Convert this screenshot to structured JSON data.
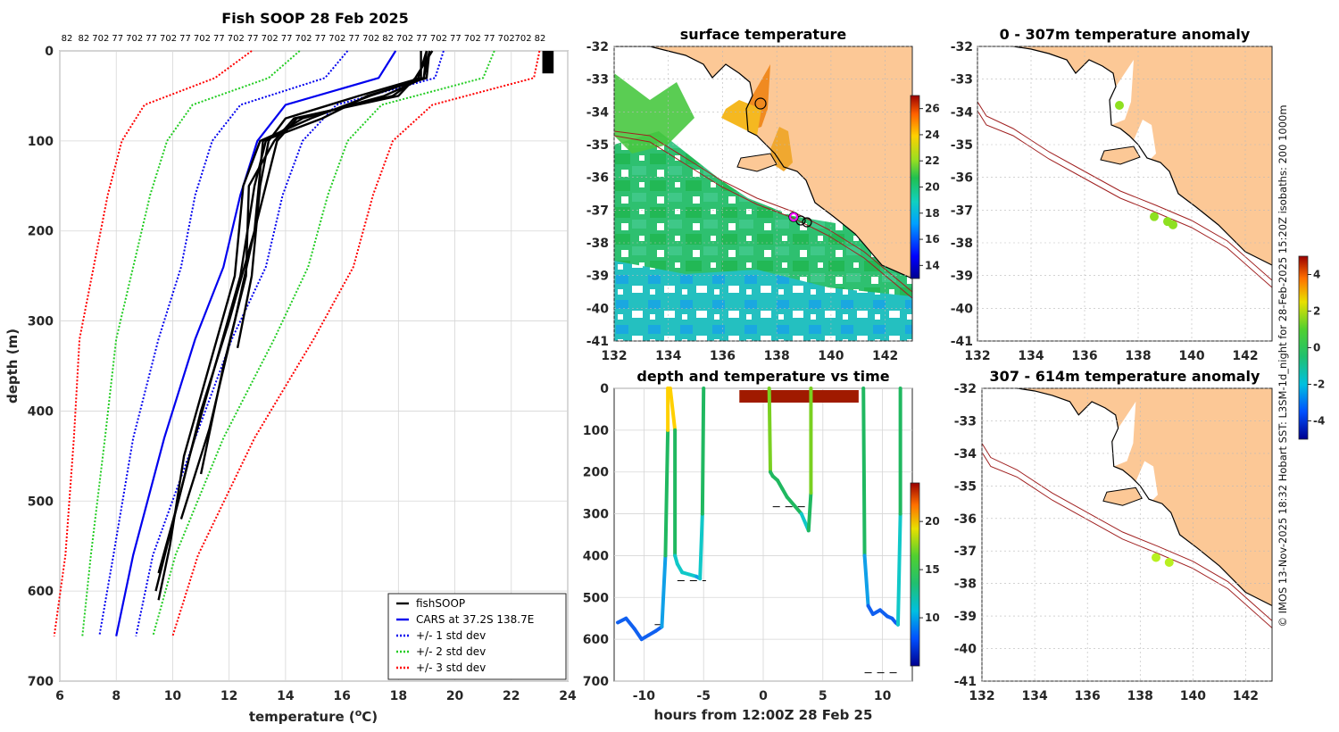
{
  "page": {
    "credit": "© IMOS 13-Nov-2025 18:32 Hobart SST: L3SM-1d_night for 28-Feb-2025 15:20Z isobaths: 200  1000m"
  },
  "chart_data": [
    {
      "type": "line",
      "title": "Fish SOOP 28 Feb 2025",
      "xlabel": "temperature (°C)",
      "ylabel": "depth (m)",
      "xlim": [
        6,
        24
      ],
      "ylim": [
        0,
        700
      ],
      "y_reversed": true,
      "xticks": [
        "6",
        "8",
        "10",
        "12",
        "14",
        "16",
        "18",
        "20",
        "22",
        "24"
      ],
      "yticks": [
        "0",
        "100",
        "200",
        "300",
        "400",
        "500",
        "600",
        "700"
      ],
      "top_ticklabels": [
        "82",
        "82",
        "702",
        "77",
        "702",
        "77",
        "702",
        "77",
        "702",
        "77",
        "702",
        "77",
        "702",
        "77",
        "702",
        "77",
        "702",
        "77",
        "702",
        "82",
        "702",
        "77",
        "702",
        "77",
        "702",
        "77",
        "702",
        "702",
        "82"
      ],
      "grid": true,
      "legend_position": "bottom-right",
      "legend": [
        {
          "label": "fishSOOP",
          "color": "#000000",
          "style": "solid"
        },
        {
          "label": "CARS at 37.2S 138.7E",
          "color": "#0000ee",
          "style": "solid"
        },
        {
          "label": "+/- 1 std dev",
          "color": "#0000ee",
          "style": "dotted"
        },
        {
          "label": "+/- 2 std dev",
          "color": "#22cc22",
          "style": "dotted"
        },
        {
          "label": "+/- 3 std dev",
          "color": "#ff0000",
          "style": "dotted"
        }
      ],
      "depths": [
        0,
        30,
        60,
        100,
        160,
        240,
        320,
        430,
        560,
        650
      ],
      "cars_mean": [
        17.9,
        17.3,
        14.0,
        13.0,
        12.4,
        11.8,
        10.8,
        9.7,
        8.6,
        8.0
      ],
      "std_bounds": [
        {
          "name": "-3",
          "color": "#ff0000",
          "values": [
            12.8,
            11.5,
            9.0,
            8.2,
            7.7,
            7.2,
            6.7,
            6.5,
            6.2,
            5.8
          ]
        },
        {
          "name": "-2",
          "color": "#22cc22",
          "values": [
            14.5,
            13.4,
            10.7,
            9.8,
            9.2,
            8.6,
            8.0,
            7.6,
            7.1,
            6.8
          ]
        },
        {
          "name": "-1",
          "color": "#0000ee",
          "values": [
            16.2,
            15.4,
            12.4,
            11.4,
            10.8,
            10.3,
            9.5,
            8.6,
            7.9,
            7.4
          ]
        },
        {
          "name": "+1",
          "color": "#0000ee",
          "values": [
            19.6,
            19.3,
            15.8,
            14.6,
            13.9,
            13.3,
            12.1,
            10.8,
            9.3,
            8.7
          ]
        },
        {
          "name": "+2",
          "color": "#22cc22",
          "values": [
            21.4,
            21.0,
            17.4,
            16.2,
            15.5,
            14.8,
            13.6,
            11.8,
            10.1,
            9.3
          ]
        },
        {
          "name": "+3",
          "color": "#ff0000",
          "values": [
            23.0,
            22.8,
            19.2,
            17.8,
            17.1,
            16.4,
            15.0,
            12.9,
            10.9,
            10.0
          ]
        }
      ],
      "fishsoop_profiles": [
        {
          "depths": [
            0,
            30,
            50,
            75,
            100,
            150,
            250,
            350,
            450,
            550,
            600
          ],
          "temps": [
            19.0,
            18.9,
            17.5,
            14.6,
            13.3,
            12.9,
            12.4,
            11.5,
            10.6,
            9.8,
            9.4
          ]
        },
        {
          "depths": [
            0,
            30,
            50,
            75,
            100,
            150,
            250,
            350,
            470
          ],
          "temps": [
            19.2,
            18.6,
            18.0,
            14.3,
            13.6,
            12.7,
            12.6,
            11.8,
            11.0
          ]
        },
        {
          "depths": [
            0,
            30,
            50,
            75,
            100,
            150,
            250,
            330
          ],
          "temps": [
            18.8,
            18.8,
            16.6,
            14.0,
            13.4,
            13.1,
            12.8,
            12.3
          ]
        },
        {
          "depths": [
            0,
            30,
            50,
            75,
            100,
            150,
            250,
            350,
            450,
            550,
            610
          ],
          "temps": [
            19.1,
            18.9,
            17.0,
            14.9,
            13.1,
            12.5,
            12.2,
            11.3,
            10.4,
            9.9,
            9.5
          ]
        },
        {
          "depths": [
            0,
            30,
            50,
            75,
            100,
            200,
            300,
            400,
            500,
            580
          ],
          "temps": [
            19.0,
            18.7,
            17.8,
            14.4,
            13.7,
            12.9,
            12.0,
            11.0,
            10.2,
            9.5
          ]
        },
        {
          "depths": [
            0,
            30,
            50,
            75,
            100,
            200,
            300,
            420,
            520
          ],
          "temps": [
            19.1,
            19.0,
            16.9,
            15.3,
            13.2,
            12.9,
            12.2,
            11.3,
            10.3
          ]
        }
      ],
      "surface_markers": {
        "temp_range": [
          23.1,
          23.5
        ],
        "depth_range": [
          0,
          25
        ]
      }
    },
    {
      "type": "heatmap",
      "title": "surface temperature",
      "xlim": [
        132,
        143
      ],
      "ylim": [
        -41,
        -32
      ],
      "xticks": [
        "132",
        "134",
        "136",
        "138",
        "140",
        "142"
      ],
      "yticks": [
        "-32",
        "-33",
        "-34",
        "-35",
        "-36",
        "-37",
        "-38",
        "-39",
        "-40",
        "-41"
      ],
      "colorbar": {
        "ticks": [
          "14",
          "16",
          "18",
          "20",
          "22",
          "24",
          "26"
        ],
        "range": [
          13,
          27
        ]
      },
      "vessel_track_points": [
        [
          138.7,
          -37.2
        ],
        [
          138.9,
          -37.25
        ],
        [
          139.1,
          -37.3
        ],
        [
          137.6,
          -33.9
        ]
      ],
      "magenta_marker": [
        138.7,
        -37.2
      ]
    },
    {
      "type": "scatter",
      "title": "depth and temperature vs time",
      "xlabel": "hours from 12:00Z 28 Feb 25",
      "xlim": [
        -12.5,
        12.5
      ],
      "ylim": [
        0,
        700
      ],
      "y_reversed": true,
      "xticks": [
        "-10",
        "-5",
        "0",
        "5",
        "10"
      ],
      "yticks": [
        "0",
        "100",
        "200",
        "300",
        "400",
        "500",
        "600",
        "700"
      ],
      "colorbar": {
        "ticks": [
          "10",
          "15",
          "20"
        ],
        "range": [
          5,
          24
        ]
      },
      "depth_series": [
        {
          "time": [
            -12.2,
            -11.5,
            -10.8,
            -10.2,
            -9.6,
            -9.0,
            -8.5,
            -8.2,
            -8.0,
            -8.0,
            -7.8,
            -7.4,
            -7.4,
            -7.2,
            -6.8,
            -6.2,
            -5.6,
            -5.3,
            -5.1,
            -5.0
          ],
          "depth": [
            560,
            550,
            575,
            600,
            590,
            580,
            570,
            400,
            100,
            0,
            0,
            100,
            400,
            420,
            440,
            445,
            450,
            455,
            300,
            0
          ]
        },
        {
          "time": [
            0.5,
            0.6,
            0.8,
            1.2,
            1.6,
            2.0,
            2.6,
            3.2,
            3.8,
            4.0,
            4.0
          ],
          "depth": [
            0,
            200,
            210,
            220,
            240,
            260,
            280,
            300,
            340,
            250,
            0
          ]
        },
        {
          "time": [
            8.4,
            8.5,
            8.8,
            9.2,
            9.8,
            10.4,
            10.8,
            11.1,
            11.3,
            11.5,
            11.5
          ],
          "depth": [
            0,
            400,
            520,
            540,
            530,
            545,
            550,
            560,
            565,
            300,
            0
          ]
        }
      ],
      "dashed_segments": [
        {
          "time": [
            -8.5,
            -9.5
          ],
          "depth": 565
        },
        {
          "time": [
            -7.2,
            -4.8
          ],
          "depth": 460
        },
        {
          "time": [
            0.8,
            3.8
          ],
          "depth": 283
        },
        {
          "time": [
            8.5,
            11.5
          ],
          "depth": 680
        }
      ],
      "surface_markers": {
        "time_range": [
          -2.0,
          8.0
        ],
        "depth": 10
      }
    },
    {
      "type": "scatter",
      "title": "0 - 307m temperature anomaly",
      "xlim": [
        132,
        143
      ],
      "ylim": [
        -41,
        -32
      ],
      "xticks": [
        "132",
        "134",
        "136",
        "138",
        "140",
        "142"
      ],
      "yticks": [
        "-32",
        "-33",
        "-34",
        "-35",
        "-36",
        "-37",
        "-38",
        "-39",
        "-40",
        "-41"
      ],
      "anomaly_points": [
        [
          137.3,
          -33.8
        ],
        [
          138.6,
          -37.2
        ],
        [
          139.1,
          -37.35
        ],
        [
          139.3,
          -37.45
        ]
      ]
    },
    {
      "type": "scatter",
      "title": "307 - 614m temperature anomaly",
      "xlim": [
        132,
        143
      ],
      "ylim": [
        -41,
        -32
      ],
      "xticks": [
        "132",
        "134",
        "136",
        "138",
        "140",
        "142"
      ],
      "yticks": [
        "-32",
        "-33",
        "-34",
        "-35",
        "-36",
        "-37",
        "-38",
        "-39",
        "-40",
        "-41"
      ],
      "anomaly_points": [
        [
          138.6,
          -37.2
        ],
        [
          139.1,
          -37.35
        ]
      ],
      "colorbar": {
        "ticks": [
          "-4",
          "-2",
          "0",
          "2",
          "4"
        ],
        "range": [
          -5,
          5
        ]
      }
    }
  ]
}
